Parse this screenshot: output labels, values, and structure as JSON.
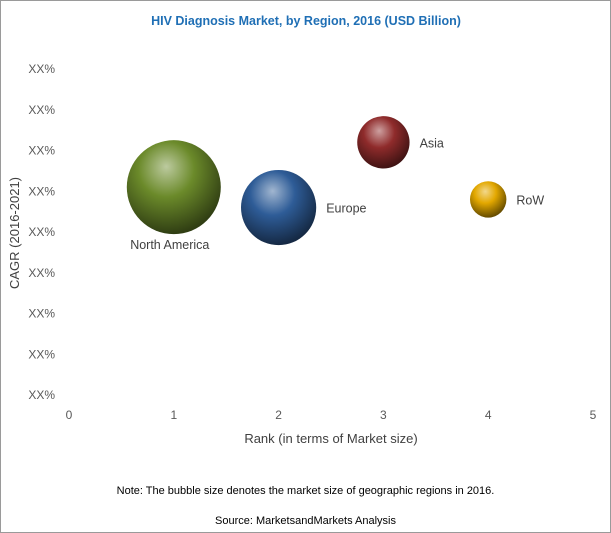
{
  "chart_data": {
    "type": "scatter",
    "title": "HIV Diagnosis Market, by Region, 2016 (USD Billion)",
    "xlabel": "Rank (in terms of Market size)",
    "ylabel": "CAGR (2016-2021)",
    "xlim": [
      0,
      5
    ],
    "x_ticks": [
      "0",
      "1",
      "2",
      "3",
      "4",
      "5"
    ],
    "y_ticks": [
      "XX%",
      "XX%",
      "XX%",
      "XX%",
      "XX%",
      "XX%",
      "XX%",
      "XX%",
      "XX%"
    ],
    "y_tick_count": 9,
    "ylim": [
      0,
      8
    ],
    "grid": false,
    "legend": "none",
    "points": [
      {
        "label": "North America",
        "x": 1,
        "y": 5.1,
        "size": 1.0,
        "color": "#6b8a2a",
        "label_pos": "below"
      },
      {
        "label": "Europe",
        "x": 2,
        "y": 4.6,
        "size": 0.64,
        "color": "#2e5c97",
        "label_pos": "right"
      },
      {
        "label": "Asia",
        "x": 3,
        "y": 6.2,
        "size": 0.31,
        "color": "#8f2b2b",
        "label_pos": "right"
      },
      {
        "label": "RoW",
        "x": 4,
        "y": 4.8,
        "size": 0.15,
        "color": "#e3a800",
        "label_pos": "right"
      }
    ]
  },
  "note": "Note: The bubble size denotes the market size of geographic regions in 2016.",
  "source": "Source: MarketsandMarkets Analysis"
}
